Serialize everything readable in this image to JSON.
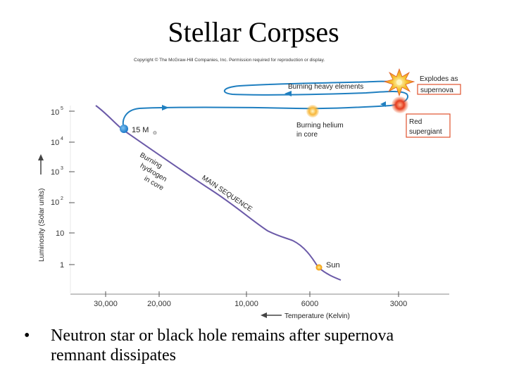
{
  "slide": {
    "title": "Stellar Corpses",
    "bullet_symbol": "•",
    "bullet_line1": "Neutron star or black hole remains after supernova",
    "bullet_line2": "remnant dissipates"
  },
  "figure": {
    "copyright": "Copyright © The McGraw-Hill Companies, Inc. Permission required for reproduction or display.",
    "y_axis_label": "Luminosity (Solar units)",
    "x_axis_label": "Temperature (Kelvin)",
    "y_ticks": [
      {
        "base": "10",
        "exp": "5"
      },
      {
        "base": "10",
        "exp": "4"
      },
      {
        "base": "10",
        "exp": "3"
      },
      {
        "base": "10",
        "exp": "2"
      },
      {
        "base": "10",
        "exp": ""
      },
      {
        "base": "1",
        "exp": ""
      }
    ],
    "x_ticks": [
      "30,000",
      "20,000",
      "10,000",
      "6000",
      "3000"
    ],
    "labels": {
      "star_mass": "15 M",
      "solar_symbol": "⊙",
      "burning_hydrogen_1": "Burning",
      "burning_hydrogen_2": "hydrogen",
      "burning_hydrogen_3": "in core",
      "main_sequence": "MAIN SEQUENCE",
      "sun": "Sun",
      "burning_heavy": "Burning heavy elements",
      "burning_helium_1": "Burning helium",
      "burning_helium_2": "in core",
      "red_supergiant_1": "Red",
      "red_supergiant_2": "supergiant",
      "explodes_1": "Explodes as",
      "explodes_2": "supernova"
    },
    "colors": {
      "main_sequence": "#6b5aa8",
      "track": "#1f7fc0",
      "label_box": "#e0522d",
      "star_blue": "#1e88d6",
      "sun": "#f7b731",
      "red_supergiant": "#e53a1e",
      "supernova": "#f5a31a"
    }
  }
}
